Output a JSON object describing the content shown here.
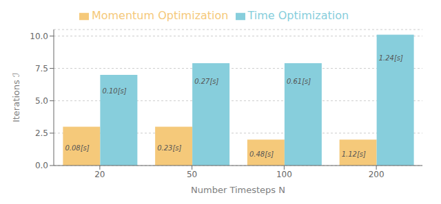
{
  "chart_data": {
    "type": "bar",
    "xlabel": "Number Timesteps N",
    "ylabel": "Iterations ℐ",
    "categories": [
      "20",
      "50",
      "100",
      "200"
    ],
    "series": [
      {
        "name": "Momentum Optimization",
        "color": "#f5c97a",
        "values": [
          3.0,
          3.0,
          2.0,
          2.0
        ],
        "annotations": [
          "0.08[s]",
          "0.23[s]",
          "0.48[s]",
          "1.12[s]"
        ]
      },
      {
        "name": "Time Optimization",
        "color": "#87cedc",
        "values": [
          7.0,
          7.9,
          7.9,
          10.1
        ],
        "annotations": [
          "0.10[s]",
          "0.27[s]",
          "0.61[s]",
          "1.24[s]"
        ]
      }
    ],
    "ylim": [
      0.0,
      10.5
    ],
    "yticks": [
      {
        "value": 0,
        "label": "0.0"
      },
      2.5,
      {
        "value": 5,
        "label": "5.0"
      },
      7.5,
      {
        "value": 10,
        "label": "10.0"
      }
    ],
    "grid": true,
    "legend": "top"
  }
}
